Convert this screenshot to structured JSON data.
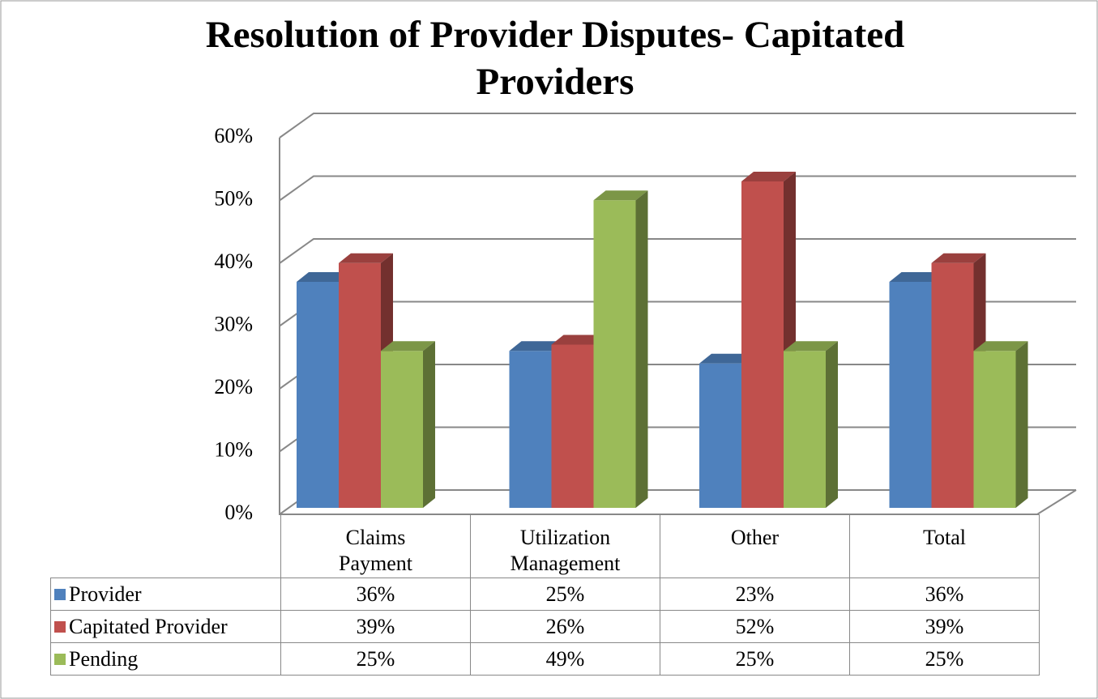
{
  "chart_data": {
    "type": "bar3d",
    "title": "Resolution of Provider Disputes- Capitated Providers",
    "categories": [
      "Claims Payment",
      "Utilization Management",
      "Other",
      "Total"
    ],
    "series": [
      {
        "name": "Provider",
        "color": "#4f81bd",
        "values": [
          36,
          25,
          23,
          36
        ],
        "value_labels": [
          "36%",
          "25%",
          "23%",
          "36%"
        ]
      },
      {
        "name": "Capitated Provider",
        "color": "#c0504d",
        "values": [
          39,
          26,
          52,
          39
        ],
        "value_labels": [
          "39%",
          "26%",
          "52%",
          "39%"
        ]
      },
      {
        "name": "Pending",
        "color": "#9bbb59",
        "values": [
          25,
          49,
          25,
          25
        ],
        "value_labels": [
          "25%",
          "49%",
          "25%",
          "25%"
        ]
      }
    ],
    "ylim": [
      0,
      60
    ],
    "yticks": [
      {
        "value": 0,
        "label": "0%"
      },
      {
        "value": 10,
        "label": "10%"
      },
      {
        "value": 20,
        "label": "20%"
      },
      {
        "value": 30,
        "label": "30%"
      },
      {
        "value": 40,
        "label": "40%"
      },
      {
        "value": 50,
        "label": "50%"
      },
      {
        "value": 60,
        "label": "60%"
      }
    ],
    "grid": true
  }
}
